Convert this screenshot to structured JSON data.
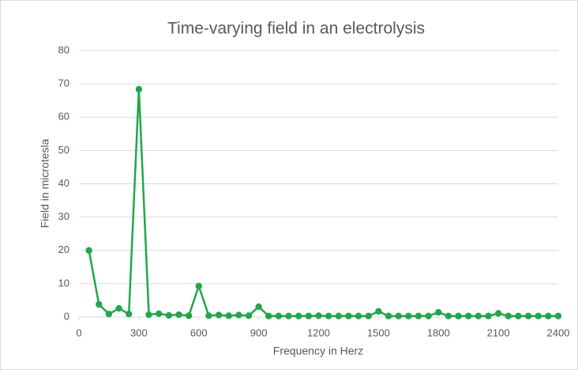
{
  "chart_data": {
    "type": "line",
    "title": "Time-varying field in an electrolysis",
    "xlabel": "Frequency in Herz",
    "ylabel": "Field in microtesla",
    "x": [
      50,
      100,
      150,
      200,
      250,
      300,
      350,
      400,
      450,
      500,
      550,
      600,
      650,
      700,
      750,
      800,
      850,
      900,
      950,
      1000,
      1050,
      1100,
      1150,
      1200,
      1250,
      1300,
      1350,
      1400,
      1450,
      1500,
      1550,
      1600,
      1650,
      1700,
      1750,
      1800,
      1850,
      1900,
      1950,
      2000,
      2050,
      2100,
      2150,
      2200,
      2250,
      2300,
      2350,
      2400
    ],
    "series": [
      {
        "name": "Field",
        "color": "#1fa84a",
        "values": [
          20,
          3.8,
          0.9,
          2.6,
          0.9,
          68.4,
          0.7,
          1.0,
          0.5,
          0.7,
          0.4,
          9.3,
          0.4,
          0.6,
          0.4,
          0.6,
          0.4,
          3.1,
          0.3,
          0.3,
          0.3,
          0.3,
          0.3,
          0.4,
          0.3,
          0.3,
          0.3,
          0.3,
          0.3,
          1.7,
          0.3,
          0.3,
          0.3,
          0.3,
          0.3,
          1.4,
          0.3,
          0.3,
          0.3,
          0.3,
          0.3,
          1.1,
          0.3,
          0.3,
          0.3,
          0.3,
          0.3,
          0.3
        ]
      }
    ],
    "xlim": [
      0,
      2400
    ],
    "xticks": [
      0,
      300,
      600,
      900,
      1200,
      1500,
      1800,
      2100,
      2400
    ],
    "ylim": [
      0,
      80
    ],
    "yticks": [
      0,
      10,
      20,
      30,
      40,
      50,
      60,
      70,
      80
    ],
    "grid": true
  }
}
